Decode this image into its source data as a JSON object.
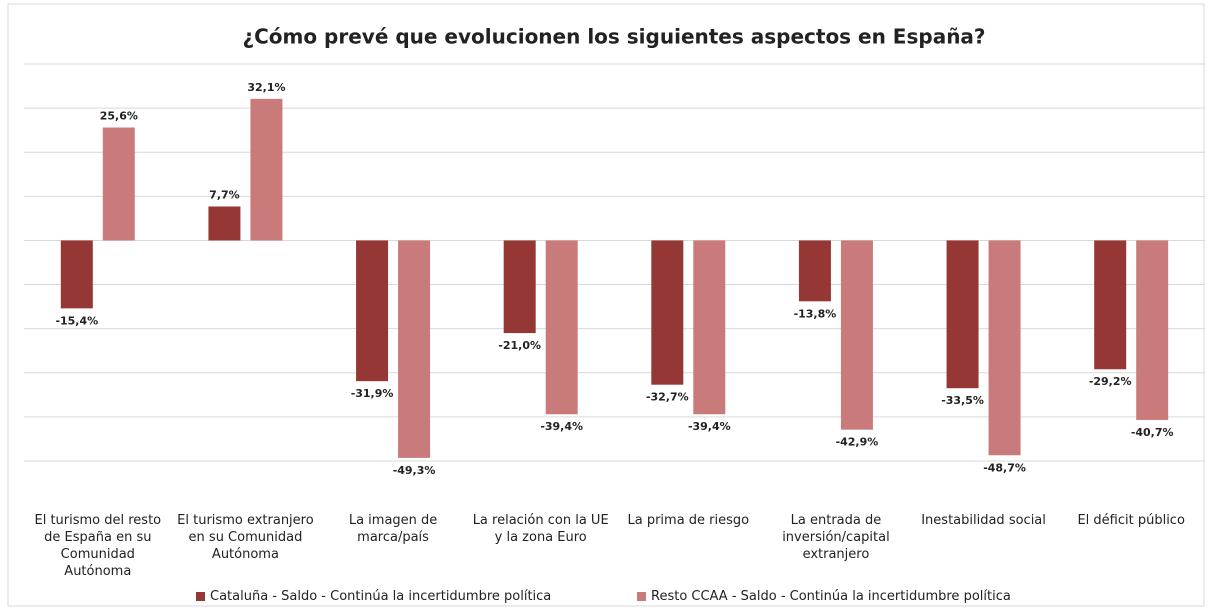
{
  "chart_data": {
    "type": "bar",
    "title": "¿Cómo prevé que evolucionen los siguientes aspectos en España?",
    "categories": [
      "El turismo del resto de España en su Comunidad Autónoma",
      "El turismo extranjero en su Comunidad Autónoma",
      "La imagen de marca/país",
      "La relación con la UE y la zona Euro",
      "La prima de riesgo",
      "La entrada de inversión/capital extranjero",
      "Inestabilidad social",
      "El déficit público"
    ],
    "series": [
      {
        "name": "Cataluña - Saldo - Continúa la incertidumbre política",
        "color": "#953735",
        "values": [
          -15.4,
          7.7,
          -31.9,
          -21.0,
          -32.7,
          -13.8,
          -33.5,
          -29.2
        ],
        "value_labels": [
          "-15,4%",
          "7,7%",
          "-31,9%",
          "-21,0%",
          "-32,7%",
          "-13,8%",
          "-33,5%",
          "-29,2%"
        ]
      },
      {
        "name": "Resto CCAA - Saldo - Continúa la incertidumbre política",
        "color": "#c97b7b",
        "values": [
          25.6,
          32.1,
          -49.3,
          -39.4,
          -39.4,
          -42.9,
          -48.7,
          -40.7
        ],
        "value_labels": [
          "25,6%",
          "32,1%",
          "-49,3%",
          "-39,4%",
          "-39,4%",
          "-42,9%",
          "-48,7%",
          "-40,7%"
        ]
      }
    ],
    "ylim": [
      -50,
      40
    ],
    "yticks": [
      -50,
      -40,
      -30,
      -20,
      -10,
      0,
      10,
      20,
      30,
      40
    ],
    "grid": true
  }
}
